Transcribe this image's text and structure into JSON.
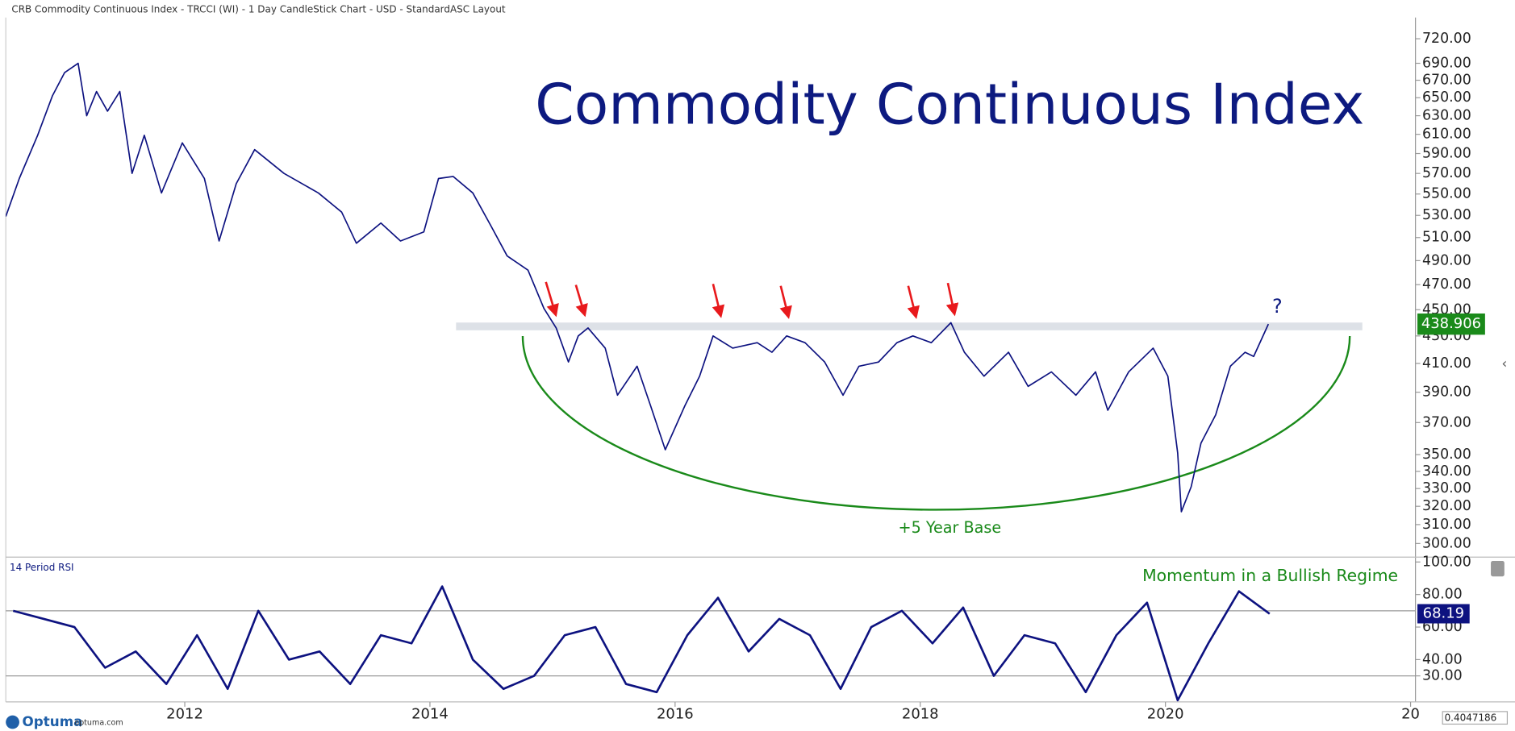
{
  "header": "CRB Commodity Continuous Index - TRCCI (WI) - 1 Day CandleStick Chart - USD - StandardASC Layout",
  "chart_data": [
    {
      "type": "line",
      "title": "Commodity Continuous Index",
      "color": "#0d1280",
      "log": true,
      "annotations": [
        "?",
        "+5 Year Base"
      ],
      "xlim": [
        2010.54,
        2022.04
      ],
      "xticks": [
        2012,
        2014,
        2016,
        2018,
        2020,
        {
          "value": 2022,
          "label": "20"
        }
      ],
      "ylim": [
        293,
        747
      ],
      "yticks": [
        {
          "value": 720,
          "label": "720.00"
        },
        {
          "value": 690,
          "label": "690.00"
        },
        {
          "value": 670,
          "label": "670.00"
        },
        {
          "value": 650,
          "label": "650.00"
        },
        {
          "value": 630,
          "label": "630.00"
        },
        {
          "value": 610,
          "label": "610.00"
        },
        {
          "value": 590,
          "label": "590.00"
        },
        {
          "value": 570,
          "label": "570.00"
        },
        {
          "value": 550,
          "label": "550.00"
        },
        {
          "value": 530,
          "label": "530.00"
        },
        {
          "value": 510,
          "label": "510.00"
        },
        {
          "value": 490,
          "label": "490.00"
        },
        {
          "value": 470,
          "label": "470.00"
        },
        {
          "value": 450,
          "label": "450.00"
        },
        {
          "value": 430,
          "label": "430.00"
        },
        {
          "value": 410,
          "label": "410.00"
        },
        {
          "value": 390,
          "label": "390.00"
        },
        {
          "value": 370,
          "label": "370.00"
        },
        {
          "value": 350,
          "label": "350.00"
        },
        {
          "value": 340,
          "label": "340.00"
        },
        {
          "value": 330,
          "label": "330.00"
        },
        {
          "value": 320,
          "label": "320.00"
        },
        {
          "value": 310,
          "label": "310.00"
        },
        {
          "value": 300,
          "label": "300.00"
        }
      ],
      "x": [
        2010.54,
        2010.65,
        2010.8,
        2010.92,
        2011.02,
        2011.13,
        2011.2,
        2011.28,
        2011.37,
        2011.47,
        2011.57,
        2011.67,
        2011.81,
        2011.98,
        2012.16,
        2012.28,
        2012.42,
        2012.57,
        2012.81,
        2013.09,
        2013.28,
        2013.4,
        2013.6,
        2013.76,
        2013.95,
        2014.07,
        2014.19,
        2014.35,
        2014.5,
        2014.63,
        2014.8,
        2014.93,
        2015.03,
        2015.13,
        2015.21,
        2015.29,
        2015.43,
        2015.53,
        2015.69,
        2015.8,
        2015.92,
        2016.08,
        2016.2,
        2016.31,
        2016.47,
        2016.67,
        2016.79,
        2016.91,
        2017.06,
        2017.22,
        2017.37,
        2017.5,
        2017.66,
        2017.81,
        2017.94,
        2018.09,
        2018.25,
        2018.36,
        2018.52,
        2018.72,
        2018.88,
        2019.07,
        2019.27,
        2019.43,
        2019.53,
        2019.7,
        2019.9,
        2020.02,
        2020.1,
        2020.13,
        2020.21,
        2020.29,
        2020.41,
        2020.53,
        2020.65,
        2020.72,
        2020.84
      ],
      "values": [
        529,
        565,
        609,
        652,
        679,
        690,
        630,
        657,
        635,
        657,
        570,
        609,
        551,
        601,
        565,
        507,
        560,
        594,
        570,
        551,
        533,
        505,
        523,
        507,
        515,
        565,
        567,
        551,
        520,
        494,
        482,
        451,
        436,
        411,
        430,
        436,
        421,
        388,
        408,
        381,
        353,
        381,
        401,
        430,
        421,
        425,
        418,
        430,
        425,
        411,
        388,
        408,
        411,
        425,
        430,
        425,
        440,
        418,
        401,
        418,
        394,
        404,
        388,
        404,
        378,
        404,
        421,
        401,
        351,
        317,
        331,
        357,
        375,
        408,
        418,
        415,
        438.906
      ]
    },
    {
      "type": "line",
      "title": "14 Period RSI",
      "color": "#0d1280",
      "annotations": [
        "Momentum in a Bullish Regime"
      ],
      "ylim": [
        14,
        103
      ],
      "yticks": [
        {
          "value": 100,
          "label": "100.00"
        },
        {
          "value": 80,
          "label": "80.00"
        },
        {
          "value": 60,
          "label": "60.00"
        },
        {
          "value": 40,
          "label": "40.00"
        },
        {
          "value": 30,
          "label": "30.00"
        }
      ],
      "hlines": [
        70,
        30
      ],
      "x": [
        2010.6,
        2010.85,
        2011.1,
        2011.35,
        2011.6,
        2011.85,
        2012.1,
        2012.35,
        2012.6,
        2012.85,
        2013.1,
        2013.35,
        2013.6,
        2013.85,
        2014.1,
        2014.35,
        2014.6,
        2014.85,
        2015.1,
        2015.35,
        2015.6,
        2015.85,
        2016.1,
        2016.35,
        2016.6,
        2016.85,
        2017.1,
        2017.35,
        2017.6,
        2017.85,
        2018.1,
        2018.35,
        2018.6,
        2018.85,
        2019.1,
        2019.35,
        2019.6,
        2019.85,
        2020.1,
        2020.35,
        2020.6,
        2020.85
      ],
      "values": [
        70,
        65,
        60,
        35,
        45,
        25,
        55,
        22,
        70,
        40,
        45,
        25,
        55,
        50,
        85,
        40,
        22,
        30,
        55,
        60,
        25,
        20,
        55,
        78,
        45,
        65,
        55,
        22,
        60,
        70,
        50,
        72,
        30,
        55,
        50,
        20,
        55,
        75,
        15,
        50,
        82,
        68.19
      ]
    }
  ],
  "footer": {
    "brand": "Optuma",
    "site": "optuma.com",
    "readout": "0.4047186"
  }
}
